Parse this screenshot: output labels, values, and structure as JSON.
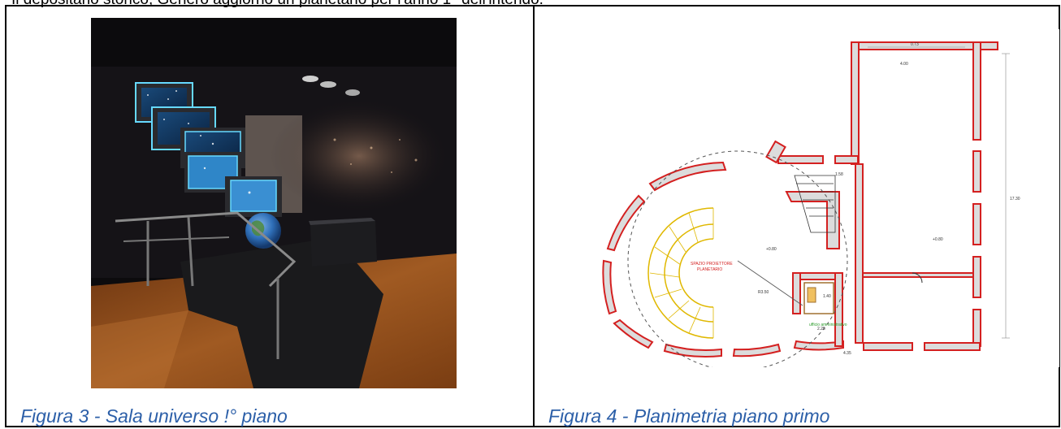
{
  "document": {
    "top_text": "Il depositario storico, Genero aggiorno un planetario per l'anno 1° dell'intendo."
  },
  "figures": [
    {
      "caption": "Figura 3 - Sala universo !° piano"
    },
    {
      "caption": "Figura 4 - Planimetria piano primo",
      "plan_labels": {
        "center": "SPAZIO PROIETTORE\nPLANETARIO",
        "office": "ufficio amministrativo",
        "radius": "R3.50",
        "dims": [
          "0.73",
          "4.00",
          "1.58",
          "1.35",
          "1.20",
          "3.40",
          "1.80",
          "2.05",
          "0.80",
          "1.40",
          "1.20",
          "2.25",
          "2.10",
          "0.96",
          "4.35",
          "2.37",
          "0.90",
          "17.30",
          "1.40",
          "1.00",
          "+0.80",
          "+0.80",
          "6.35"
        ]
      }
    }
  ]
}
